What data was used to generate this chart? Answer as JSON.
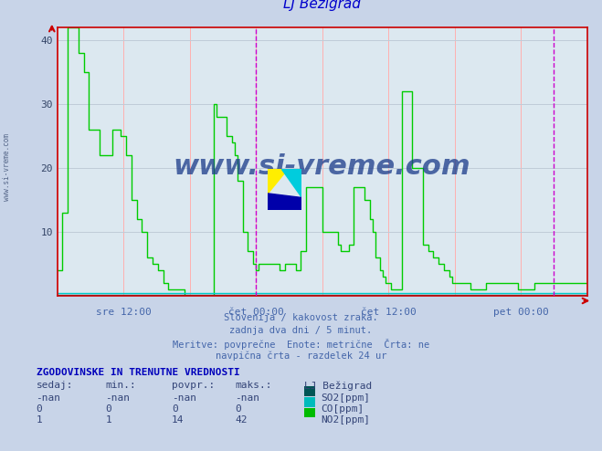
{
  "title": "LJ Bežigrad",
  "title_color": "#0000cc",
  "bg_color": "#c8d4e8",
  "plot_bg_color": "#dce8f0",
  "grid_color_x": "#ffb0b0",
  "grid_color_y": "#c0ccd8",
  "xlabel_ticks": [
    "sre 12:00",
    "čet 00:00",
    "čet 12:00",
    "pet 00:00"
  ],
  "xlabel_tick_positions": [
    0.125,
    0.375,
    0.625,
    0.875
  ],
  "ylim": [
    0,
    42
  ],
  "yticks": [
    10,
    20,
    30,
    40
  ],
  "vline_positions": [
    0.375,
    0.9375
  ],
  "vline_color": "#cc00cc",
  "axis_color": "#cc0000",
  "subtitle_lines": [
    "Slovenija / kakovost zraka.",
    "zadnja dva dni / 5 minut.",
    "Meritve: povprečne  Enote: metrične  Črta: ne",
    "navpična črta - razdelek 24 ur"
  ],
  "subtitle_color": "#4466aa",
  "table_header": "ZGODOVINSKE IN TRENUTNE VREDNOSTI",
  "table_header_color": "#0000bb",
  "table_col_headers": [
    "sedaj:",
    "min.:",
    "povpr.:",
    "maks.:",
    "LJ Bežigrad"
  ],
  "table_rows": [
    [
      "-nan",
      "-nan",
      "-nan",
      "-nan",
      "SO2[ppm]"
    ],
    [
      "0",
      "0",
      "0",
      "0",
      "CO[ppm]"
    ],
    [
      "1",
      "1",
      "14",
      "42",
      "NO2[ppm]"
    ]
  ],
  "legend_colors": [
    "#005555",
    "#00bbbb",
    "#00bb00"
  ],
  "watermark": "www.si-vreme.com",
  "watermark_color": "#1a3a8a",
  "no2_color": "#00cc00",
  "co_color": "#00cccc",
  "so2_color": "#006666",
  "no2_data_x": [
    0,
    0.005,
    0.01,
    0.015,
    0.02,
    0.025,
    0.03,
    0.04,
    0.05,
    0.06,
    0.065,
    0.07,
    0.075,
    0.08,
    0.09,
    0.1,
    0.105,
    0.11,
    0.115,
    0.12,
    0.13,
    0.14,
    0.15,
    0.16,
    0.17,
    0.18,
    0.19,
    0.2,
    0.21,
    0.22,
    0.23,
    0.24,
    0.25,
    0.26,
    0.27,
    0.28,
    0.29,
    0.295,
    0.3,
    0.31,
    0.32,
    0.33,
    0.335,
    0.34,
    0.35,
    0.36,
    0.37,
    0.375,
    0.38,
    0.39,
    0.4,
    0.41,
    0.42,
    0.43,
    0.44,
    0.45,
    0.46,
    0.47,
    0.48,
    0.49,
    0.495,
    0.5,
    0.51,
    0.52,
    0.525,
    0.53,
    0.535,
    0.54,
    0.55,
    0.56,
    0.565,
    0.57,
    0.58,
    0.59,
    0.595,
    0.6,
    0.61,
    0.615,
    0.62,
    0.625,
    0.63,
    0.64,
    0.65,
    0.66,
    0.67,
    0.68,
    0.69,
    0.7,
    0.71,
    0.72,
    0.73,
    0.74,
    0.745,
    0.75,
    0.76,
    0.765,
    0.77,
    0.78,
    0.79,
    0.8,
    0.81,
    0.82,
    0.83,
    0.84,
    0.85,
    0.86,
    0.87,
    0.88,
    0.89,
    0.895,
    0.9,
    0.91,
    0.92,
    0.93,
    0.94,
    0.945,
    0.95,
    0.96,
    0.97,
    0.98,
    0.99,
    1.0
  ],
  "no2_data_y": [
    4,
    4,
    13,
    13,
    42,
    42,
    42,
    38,
    35,
    26,
    26,
    26,
    26,
    22,
    22,
    22,
    26,
    26,
    26,
    25,
    22,
    15,
    12,
    10,
    6,
    5,
    4,
    2,
    1,
    1,
    1,
    0,
    0,
    0,
    0,
    0,
    0,
    30,
    28,
    28,
    25,
    24,
    22,
    18,
    10,
    7,
    5,
    4,
    5,
    5,
    5,
    5,
    4,
    5,
    5,
    4,
    7,
    17,
    17,
    17,
    17,
    10,
    10,
    10,
    10,
    8,
    7,
    7,
    8,
    17,
    17,
    17,
    15,
    12,
    10,
    6,
    4,
    3,
    2,
    2,
    1,
    1,
    32,
    32,
    20,
    20,
    8,
    7,
    6,
    5,
    4,
    3,
    2,
    2,
    2,
    2,
    2,
    1,
    1,
    1,
    2,
    2,
    2,
    2,
    2,
    2,
    1,
    1,
    1,
    1,
    2,
    2,
    2,
    2,
    2,
    2,
    2,
    2,
    2,
    2,
    2,
    2
  ]
}
